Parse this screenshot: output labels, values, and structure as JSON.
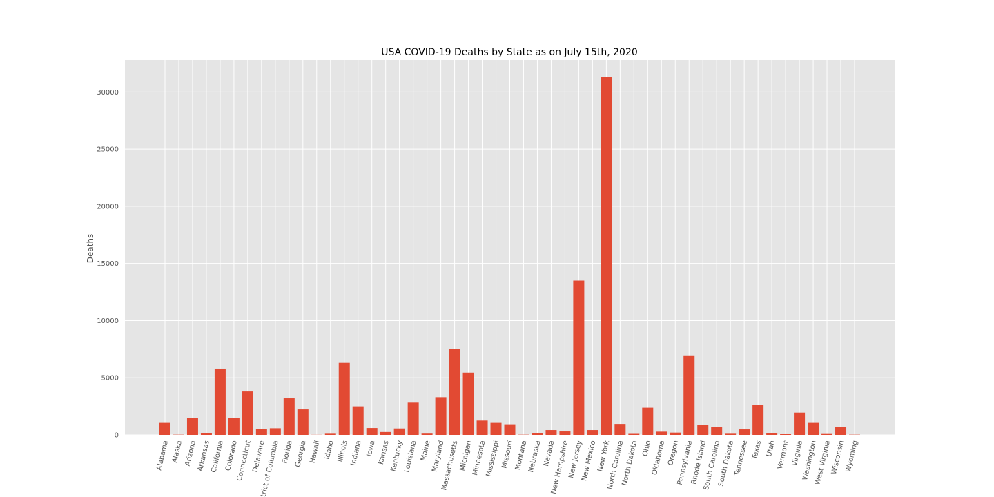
{
  "chart_data": {
    "type": "bar",
    "title": "USA COVID-19 Deaths by State as on July 15th, 2020",
    "xlabel": "",
    "ylabel": "Deaths",
    "ylim": [
      0,
      32800
    ],
    "yticks": [
      0,
      5000,
      10000,
      15000,
      20000,
      25000,
      30000
    ],
    "grid": true,
    "bar_color": "#E24A33",
    "background_color": "#E5E5E5",
    "grid_color": "#FFFFFF",
    "categories": [
      "Alabama",
      "Alaska",
      "Arizona",
      "Arkansas",
      "California",
      "Colorado",
      "Connecticut",
      "Delaware",
      "District of Columbia",
      "Florida",
      "Georgia",
      "Hawaii",
      "Idaho",
      "Illinois",
      "Indiana",
      "Iowa",
      "Kansas",
      "Kentucky",
      "Louisiana",
      "Maine",
      "Maryland",
      "Massachusetts",
      "Michigan",
      "Minnesota",
      "Mississippi",
      "Missouri",
      "Montana",
      "Nebraska",
      "Nevada",
      "New Hampshire",
      "New Jersey",
      "New Mexico",
      "New York",
      "North Carolina",
      "North Dakota",
      "Ohio",
      "Oklahoma",
      "Oregon",
      "Pennsylvania",
      "Rhode Island",
      "South Carolina",
      "South Dakota",
      "Tennessee",
      "Texas",
      "Utah",
      "Vermont",
      "Virginia",
      "Washington",
      "West Virginia",
      "Wisconsin",
      "Wyoming"
    ],
    "values": [
      1050,
      20,
      1500,
      180,
      5800,
      1500,
      3800,
      520,
      580,
      3200,
      2230,
      10,
      100,
      6300,
      2500,
      600,
      250,
      560,
      2820,
      110,
      3300,
      7500,
      5450,
      1250,
      1050,
      930,
      20,
      160,
      420,
      300,
      13500,
      420,
      31300,
      960,
      90,
      2380,
      280,
      200,
      6900,
      860,
      720,
      100,
      480,
      2650,
      130,
      60,
      1950,
      1050,
      80,
      700,
      20
    ]
  }
}
